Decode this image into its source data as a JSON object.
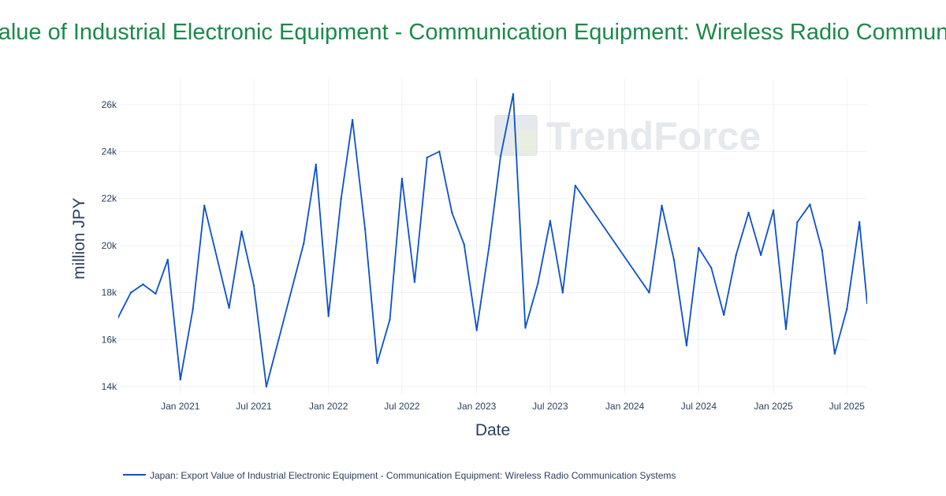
{
  "chart_data": {
    "type": "line",
    "title": "Japan: Export Value of Industrial Electronic Equipment - Communication Equipment: Wireless Radio Communication Systems",
    "xlabel": "Date",
    "ylabel": "million JPY",
    "ylim": [
      13700,
      27100
    ],
    "xlim": [
      "2020-08-01",
      "2025-08-20"
    ],
    "grid": true,
    "legend_position": "bottom-left",
    "y_ticks": [
      {
        "value": 14000,
        "label": "14k"
      },
      {
        "value": 16000,
        "label": "16k"
      },
      {
        "value": 18000,
        "label": "18k"
      },
      {
        "value": 20000,
        "label": "20k"
      },
      {
        "value": 22000,
        "label": "22k"
      },
      {
        "value": 24000,
        "label": "24k"
      },
      {
        "value": 26000,
        "label": "26k"
      }
    ],
    "x_ticks": [
      {
        "value": "2021-01-01",
        "label": "Jan 2021"
      },
      {
        "value": "2021-07-01",
        "label": "Jul 2021"
      },
      {
        "value": "2022-01-01",
        "label": "Jan 2022"
      },
      {
        "value": "2022-07-01",
        "label": "Jul 2022"
      },
      {
        "value": "2023-01-01",
        "label": "Jan 2023"
      },
      {
        "value": "2023-07-01",
        "label": "Jul 2023"
      },
      {
        "value": "2024-01-01",
        "label": "Jan 2024"
      },
      {
        "value": "2024-07-01",
        "label": "Jul 2024"
      },
      {
        "value": "2025-01-01",
        "label": "Jan 2025"
      },
      {
        "value": "2025-07-01",
        "label": "Jul 2025"
      }
    ],
    "series": [
      {
        "name": "Japan: Export Value of Industrial Electronic Equipment - Communication Equipment: Wireless Radio Communication Systems",
        "color": "#0a50d0",
        "points": [
          {
            "x": "2020-08-01",
            "y": 16950
          },
          {
            "x": "2020-09-01",
            "y": 18000
          },
          {
            "x": "2020-10-01",
            "y": 18350
          },
          {
            "x": "2020-11-01",
            "y": 17950
          },
          {
            "x": "2020-12-01",
            "y": 19400
          },
          {
            "x": "2021-01-01",
            "y": 14300
          },
          {
            "x": "2021-02-01",
            "y": 17300
          },
          {
            "x": "2021-03-01",
            "y": 21700
          },
          {
            "x": "2021-05-01",
            "y": 17350
          },
          {
            "x": "2021-06-01",
            "y": 20600
          },
          {
            "x": "2021-07-01",
            "y": 18300
          },
          {
            "x": "2021-08-01",
            "y": 14000
          },
          {
            "x": "2021-11-01",
            "y": 20100
          },
          {
            "x": "2021-12-01",
            "y": 23450
          },
          {
            "x": "2022-01-01",
            "y": 17000
          },
          {
            "x": "2022-02-01",
            "y": 22000
          },
          {
            "x": "2022-03-01",
            "y": 25350
          },
          {
            "x": "2022-04-01",
            "y": 20700
          },
          {
            "x": "2022-05-01",
            "y": 15000
          },
          {
            "x": "2022-06-01",
            "y": 16850
          },
          {
            "x": "2022-07-01",
            "y": 22850
          },
          {
            "x": "2022-08-01",
            "y": 18450
          },
          {
            "x": "2022-09-01",
            "y": 23750
          },
          {
            "x": "2022-10-01",
            "y": 24000
          },
          {
            "x": "2022-11-01",
            "y": 21400
          },
          {
            "x": "2022-12-01",
            "y": 20050
          },
          {
            "x": "2023-01-01",
            "y": 16400
          },
          {
            "x": "2023-02-01",
            "y": 20000
          },
          {
            "x": "2023-03-01",
            "y": 23800
          },
          {
            "x": "2023-04-01",
            "y": 26450
          },
          {
            "x": "2023-05-01",
            "y": 16500
          },
          {
            "x": "2023-06-01",
            "y": 18400
          },
          {
            "x": "2023-07-01",
            "y": 21050
          },
          {
            "x": "2023-08-01",
            "y": 18000
          },
          {
            "x": "2023-09-01",
            "y": 22550
          },
          {
            "x": "2024-03-01",
            "y": 18000
          },
          {
            "x": "2024-04-01",
            "y": 21700
          },
          {
            "x": "2024-05-01",
            "y": 19400
          },
          {
            "x": "2024-06-01",
            "y": 15750
          },
          {
            "x": "2024-07-01",
            "y": 19900
          },
          {
            "x": "2024-08-01",
            "y": 19050
          },
          {
            "x": "2024-09-01",
            "y": 17050
          },
          {
            "x": "2024-10-01",
            "y": 19600
          },
          {
            "x": "2024-11-01",
            "y": 21400
          },
          {
            "x": "2024-12-01",
            "y": 19600
          },
          {
            "x": "2025-01-01",
            "y": 21500
          },
          {
            "x": "2025-02-01",
            "y": 16450
          },
          {
            "x": "2025-03-01",
            "y": 21000
          },
          {
            "x": "2025-04-01",
            "y": 21750
          },
          {
            "x": "2025-05-01",
            "y": 19800
          },
          {
            "x": "2025-06-01",
            "y": 15400
          },
          {
            "x": "2025-07-01",
            "y": 17300
          },
          {
            "x": "2025-08-01",
            "y": 21000
          },
          {
            "x": "2025-08-20",
            "y": 17550
          }
        ]
      }
    ]
  },
  "watermark": {
    "text": "TrendForce"
  }
}
